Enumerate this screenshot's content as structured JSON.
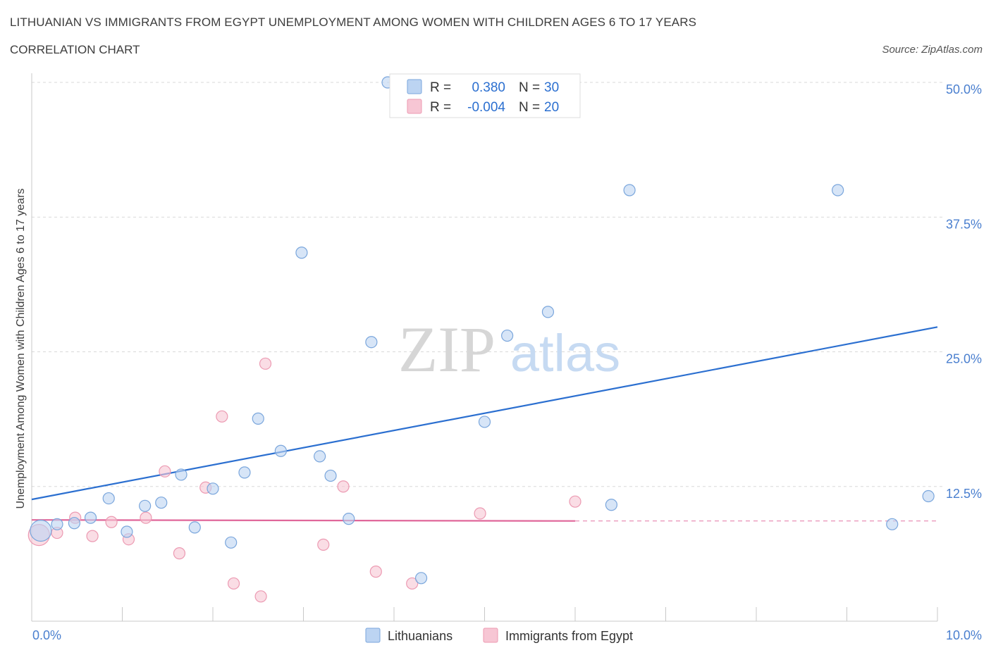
{
  "header": {
    "title": "LITHUANIAN VS IMMIGRANTS FROM EGYPT UNEMPLOYMENT AMONG WOMEN WITH CHILDREN AGES 6 TO 17 YEARS",
    "subtitle": "CORRELATION CHART",
    "source": "Source: ZipAtlas.com"
  },
  "watermark": {
    "zip": "ZIP",
    "atlas": "atlas"
  },
  "colors": {
    "blue_fill": "#bcd4f2",
    "blue_stroke": "#7aa6dc",
    "blue_line": "#2b6fd0",
    "pink_fill": "#f7c6d4",
    "pink_stroke": "#ec9ab2",
    "pink_line": "#e0679a",
    "tick_label": "#4a7fcf",
    "grid": "#d9d9d9"
  },
  "legend_box": {
    "rows": [
      {
        "r_label": "R =",
        "r_value": "0.380",
        "n_label": "N =",
        "n_value": "30",
        "swatch": "blue"
      },
      {
        "r_label": "R =",
        "r_value": "-0.004",
        "n_label": "N =",
        "n_value": "20",
        "swatch": "pink"
      }
    ]
  },
  "chart_data": {
    "type": "scatter",
    "title": "LITHUANIAN VS IMMIGRANTS FROM EGYPT UNEMPLOYMENT AMONG WOMEN WITH CHILDREN AGES 6 TO 17 YEARS",
    "xlabel": "",
    "ylabel": "Unemployment Among Women with Children Ages 6 to 17 years",
    "xlim": [
      0,
      10
    ],
    "ylim": [
      0,
      50
    ],
    "x_tick_labels": [
      "0.0%",
      "10.0%"
    ],
    "y_tick_values": [
      12.5,
      25,
      37.5,
      50
    ],
    "y_tick_labels": [
      "12.5%",
      "25.0%",
      "37.5%",
      "50.0%"
    ],
    "grid": true,
    "legend_position": "bottom-center",
    "series": [
      {
        "name": "Lithuanians",
        "color": "#7aa6dc",
        "trend": {
          "x": [
            0,
            10
          ],
          "y": [
            11.3,
            27.3
          ],
          "style": "solid"
        },
        "points": [
          {
            "x": 0.1,
            "y": 8.4,
            "big": true
          },
          {
            "x": 0.28,
            "y": 9.0
          },
          {
            "x": 0.47,
            "y": 9.1
          },
          {
            "x": 0.65,
            "y": 9.6
          },
          {
            "x": 0.85,
            "y": 11.4
          },
          {
            "x": 1.05,
            "y": 8.3
          },
          {
            "x": 1.25,
            "y": 10.7
          },
          {
            "x": 1.43,
            "y": 11.0
          },
          {
            "x": 1.65,
            "y": 13.6
          },
          {
            "x": 1.8,
            "y": 8.7
          },
          {
            "x": 2.0,
            "y": 12.3
          },
          {
            "x": 2.2,
            "y": 7.3
          },
          {
            "x": 2.35,
            "y": 13.8
          },
          {
            "x": 2.5,
            "y": 18.8
          },
          {
            "x": 2.75,
            "y": 15.8
          },
          {
            "x": 2.98,
            "y": 34.2
          },
          {
            "x": 3.18,
            "y": 15.3
          },
          {
            "x": 3.3,
            "y": 13.5
          },
          {
            "x": 3.5,
            "y": 9.5
          },
          {
            "x": 3.75,
            "y": 25.9
          },
          {
            "x": 3.93,
            "y": 50.0
          },
          {
            "x": 4.3,
            "y": 4.0
          },
          {
            "x": 5.0,
            "y": 18.5
          },
          {
            "x": 5.25,
            "y": 26.5
          },
          {
            "x": 5.7,
            "y": 28.7
          },
          {
            "x": 6.4,
            "y": 10.8
          },
          {
            "x": 6.6,
            "y": 40.0
          },
          {
            "x": 8.9,
            "y": 40.0
          },
          {
            "x": 9.5,
            "y": 9.0
          },
          {
            "x": 9.9,
            "y": 11.6
          }
        ]
      },
      {
        "name": "Immigrants from Egypt",
        "color": "#ec9ab2",
        "trend": {
          "x": [
            0,
            6
          ],
          "y": [
            9.4,
            9.3
          ],
          "style": "solid",
          "extend_to": 10,
          "extend_y": 9.3,
          "extend_style": "dashed"
        },
        "points": [
          {
            "x": 0.08,
            "y": 8.0,
            "big": true
          },
          {
            "x": 0.28,
            "y": 8.2
          },
          {
            "x": 0.48,
            "y": 9.6
          },
          {
            "x": 0.67,
            "y": 7.9
          },
          {
            "x": 0.88,
            "y": 9.2
          },
          {
            "x": 1.07,
            "y": 7.6
          },
          {
            "x": 1.26,
            "y": 9.6
          },
          {
            "x": 1.47,
            "y": 13.9
          },
          {
            "x": 1.63,
            "y": 6.3
          },
          {
            "x": 1.92,
            "y": 12.4
          },
          {
            "x": 2.1,
            "y": 19.0
          },
          {
            "x": 2.23,
            "y": 3.5
          },
          {
            "x": 2.53,
            "y": 2.3
          },
          {
            "x": 2.58,
            "y": 23.9
          },
          {
            "x": 3.22,
            "y": 7.1
          },
          {
            "x": 3.44,
            "y": 12.5
          },
          {
            "x": 3.8,
            "y": 4.6
          },
          {
            "x": 4.2,
            "y": 3.5
          },
          {
            "x": 4.95,
            "y": 10.0
          },
          {
            "x": 6.0,
            "y": 11.1
          }
        ]
      }
    ]
  }
}
